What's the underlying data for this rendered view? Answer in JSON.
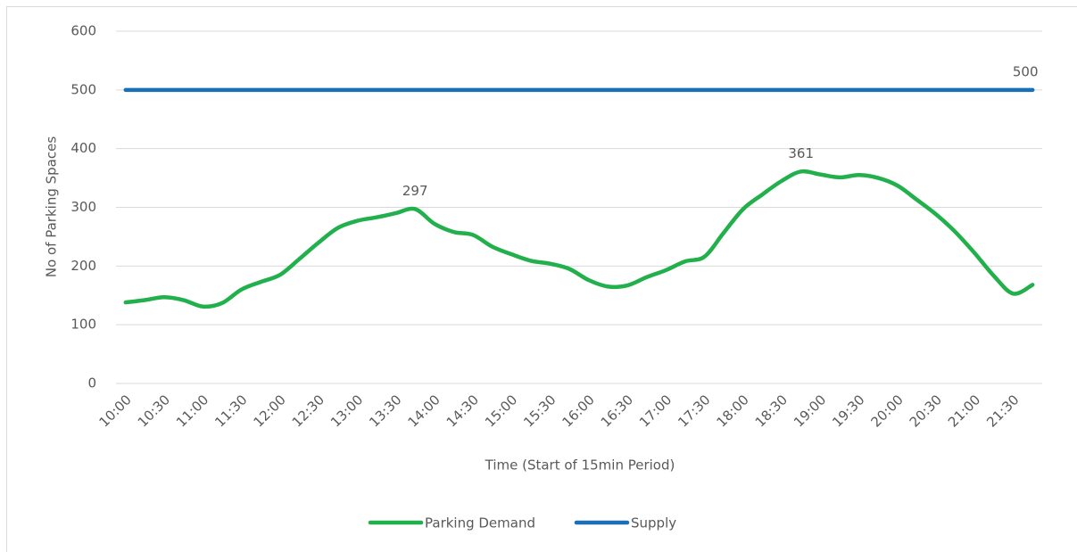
{
  "chart_data": {
    "type": "line",
    "y_label": "No of Parking Spaces",
    "x_label": "Time (Start of 15min Period)",
    "categories": [
      "10:00",
      null,
      "10:30",
      null,
      "11:00",
      null,
      "11:30",
      null,
      "12:00",
      null,
      "12:30",
      null,
      "13:00",
      null,
      "13:30",
      null,
      "14:00",
      null,
      "14:30",
      null,
      "15:00",
      null,
      "15:30",
      null,
      "16:00",
      null,
      "16:30",
      null,
      "17:00",
      null,
      "17:30",
      null,
      "18:00",
      null,
      "18:30",
      null,
      "19:00",
      null,
      "19:30",
      null,
      "20:00",
      null,
      "20:30",
      null,
      "21:00",
      null,
      "21:30",
      null
    ],
    "series": [
      {
        "name": "Parking Demand",
        "color": "#21b04b",
        "values": [
          138,
          142,
          147,
          142,
          131,
          137,
          160,
          173,
          185,
          212,
          240,
          265,
          277,
          283,
          290,
          297,
          272,
          258,
          253,
          233,
          220,
          209,
          204,
          195,
          176,
          165,
          167,
          181,
          193,
          208,
          216,
          257,
          297,
          322,
          345,
          361,
          356,
          351,
          355,
          350,
          337,
          313,
          288,
          258,
          222,
          183,
          153,
          168
        ],
        "value_labels": [
          null,
          null,
          null,
          null,
          null,
          null,
          null,
          null,
          null,
          null,
          null,
          null,
          null,
          null,
          null,
          "297",
          null,
          null,
          null,
          null,
          null,
          null,
          null,
          null,
          null,
          null,
          null,
          null,
          null,
          null,
          null,
          null,
          null,
          null,
          null,
          "361",
          null,
          null,
          null,
          null,
          null,
          null,
          null,
          null,
          null,
          null,
          null,
          null
        ]
      },
      {
        "name": "Supply",
        "color": "#1a6fb5",
        "values": [
          500,
          500,
          500,
          500,
          500,
          500,
          500,
          500,
          500,
          500,
          500,
          500,
          500,
          500,
          500,
          500,
          500,
          500,
          500,
          500,
          500,
          500,
          500,
          500,
          500,
          500,
          500,
          500,
          500,
          500,
          500,
          500,
          500,
          500,
          500,
          500,
          500,
          500,
          500,
          500,
          500,
          500,
          500,
          500,
          500,
          500,
          500,
          500
        ],
        "value_labels": [
          null,
          null,
          null,
          null,
          null,
          null,
          null,
          null,
          null,
          null,
          null,
          null,
          null,
          null,
          null,
          null,
          null,
          null,
          null,
          null,
          null,
          null,
          null,
          null,
          null,
          null,
          null,
          null,
          null,
          null,
          null,
          null,
          null,
          null,
          null,
          null,
          null,
          null,
          null,
          null,
          null,
          null,
          null,
          null,
          null,
          null,
          null,
          "500"
        ]
      }
    ],
    "ylim": [
      0,
      600
    ],
    "yticks": [
      0,
      100,
      200,
      300,
      400,
      500,
      600
    ],
    "grid": true,
    "legend": "bottom"
  }
}
